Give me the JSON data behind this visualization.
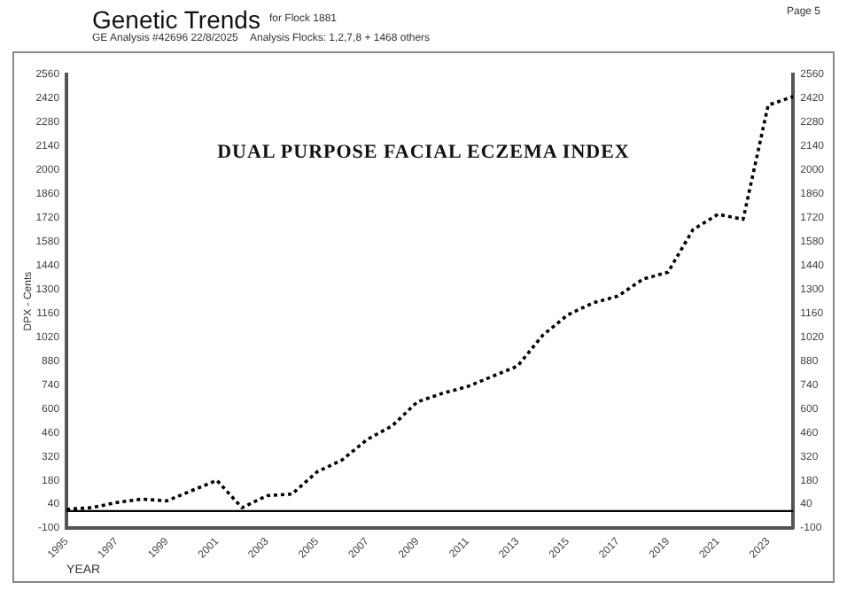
{
  "chart_data": {
    "type": "line",
    "title": "DUAL PURPOSE FACIAL ECZEMA INDEX",
    "annotations": [
      "Genetic Trends",
      "for Flock 1881",
      "GE Analysis #42696 22/8/2025",
      "Analysis Flocks: 1,2,7,8 + 1468 others",
      "Page 5"
    ],
    "xlabel": "YEAR",
    "ylabel": "DPX - Cents",
    "x": [
      1995,
      1996,
      1997,
      1998,
      1999,
      2000,
      2001,
      2002,
      2003,
      2004,
      2005,
      2006,
      2007,
      2008,
      2009,
      2010,
      2011,
      2012,
      2013,
      2014,
      2015,
      2016,
      2017,
      2018,
      2019,
      2020,
      2021,
      2022,
      2023,
      2024
    ],
    "series": [
      {
        "color": "#000000",
        "line_style": "dotted",
        "values": [
          10,
          20,
          50,
          70,
          60,
          120,
          180,
          20,
          90,
          100,
          230,
          300,
          420,
          500,
          640,
          690,
          730,
          790,
          850,
          1030,
          1150,
          1220,
          1260,
          1360,
          1400,
          1650,
          1740,
          1710,
          2380,
          2430
        ]
      }
    ],
    "xlim": [
      1995,
      2024
    ],
    "xticks": [
      1995,
      1997,
      1999,
      2001,
      2003,
      2005,
      2007,
      2009,
      2011,
      2013,
      2015,
      2017,
      2019,
      2021,
      2023
    ],
    "ylim": [
      -100,
      2560
    ],
    "yticks": [
      -100,
      40,
      180,
      320,
      460,
      600,
      740,
      880,
      1020,
      1160,
      1300,
      1440,
      1580,
      1720,
      1860,
      2000,
      2140,
      2280,
      2420,
      2560
    ],
    "y2lim": [
      -100,
      2560
    ],
    "y2ticks": [
      -100,
      40,
      180,
      320,
      460,
      600,
      740,
      880,
      1020,
      1160,
      1300,
      1440,
      1580,
      1720,
      1860,
      2000,
      2140,
      2280,
      2420,
      2560
    ],
    "ref_lines": [
      {
        "axis": "y",
        "value": 0,
        "color": "#000000",
        "line_style": "solid"
      }
    ],
    "marker": "none",
    "grid": false,
    "legend": false
  }
}
